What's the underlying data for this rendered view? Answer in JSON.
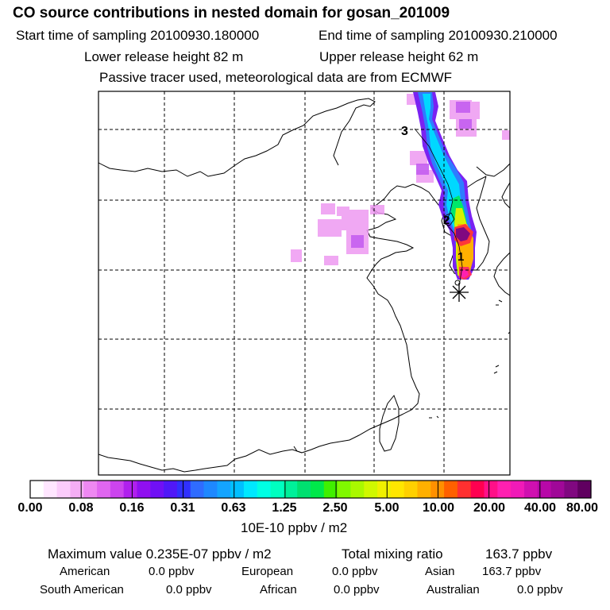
{
  "header": {
    "title": "CO  source contributions in nested domain for gosan_201009",
    "start_label": "Start time of sampling 20100930.180000",
    "end_label": "End time of sampling 20100930.210000",
    "lower_label": "Lower release height   82 m",
    "upper_label": "Upper release height   62 m",
    "tracer_note": "Passive tracer used, meteorological data are from ECMWF"
  },
  "chart_data": {
    "type": "heatmap",
    "title": "CO  source contributions in nested domain for gosan_201009",
    "colorbar": {
      "unit": "10E-10 ppbv / m2",
      "tick_labels": [
        "0.00",
        "0.08",
        "0.16",
        "0.31",
        "0.63",
        "1.25",
        "2.50",
        "5.00",
        "10.00",
        "20.00",
        "40.00",
        "80.00"
      ],
      "tick_values": [
        0.0,
        0.08,
        0.16,
        0.31,
        0.63,
        1.25,
        2.5,
        5.0,
        10.0,
        20.0,
        40.0,
        80.0
      ],
      "colors": [
        "#ffffff",
        "#ffe6ff",
        "#fbccfb",
        "#f5aef5",
        "#ee88f2",
        "#e066f0",
        "#cc44ee",
        "#b020ee",
        "#9010f0",
        "#7010f5",
        "#5018f8",
        "#3030ff",
        "#2f6cff",
        "#1e88ff",
        "#14a4ff",
        "#00c0ff",
        "#00e8ff",
        "#00ffe4",
        "#00ffc0",
        "#00f09a",
        "#00e070",
        "#00e84a",
        "#40f000",
        "#80f800",
        "#aaf800",
        "#d0f800",
        "#f0f000",
        "#ffe600",
        "#ffd000",
        "#ffb000",
        "#ff9000",
        "#ff6000",
        "#ff3030",
        "#ff0050",
        "#ff1088",
        "#ff20b0",
        "#f01ab8",
        "#d010b0",
        "#b808a8",
        "#a00898",
        "#800880",
        "#600060"
      ]
    },
    "points": [
      {
        "label": "1",
        "kind": "trajectory-marker"
      },
      {
        "label": "2",
        "kind": "trajectory-marker"
      },
      {
        "label": "3",
        "kind": "trajectory-marker"
      }
    ],
    "receptor": "gosan",
    "grid": true
  },
  "stats": {
    "max_label": "Maximum value  0.235E-07 ppbv / m2",
    "total_label": "Total mixing ratio",
    "total_value": "163.7 ppbv",
    "american_label": "American",
    "american_value": "0.0 ppbv",
    "european_label": "European",
    "european_value": "0.0 ppbv",
    "asian_label": "Asian",
    "asian_value": "163.7 ppbv",
    "south_american_label": "South American",
    "south_american_value": "0.0 ppbv",
    "african_label": "African",
    "african_value": "0.0 ppbv",
    "australian_label": "Australian",
    "australian_value": "0.0 ppbv"
  }
}
